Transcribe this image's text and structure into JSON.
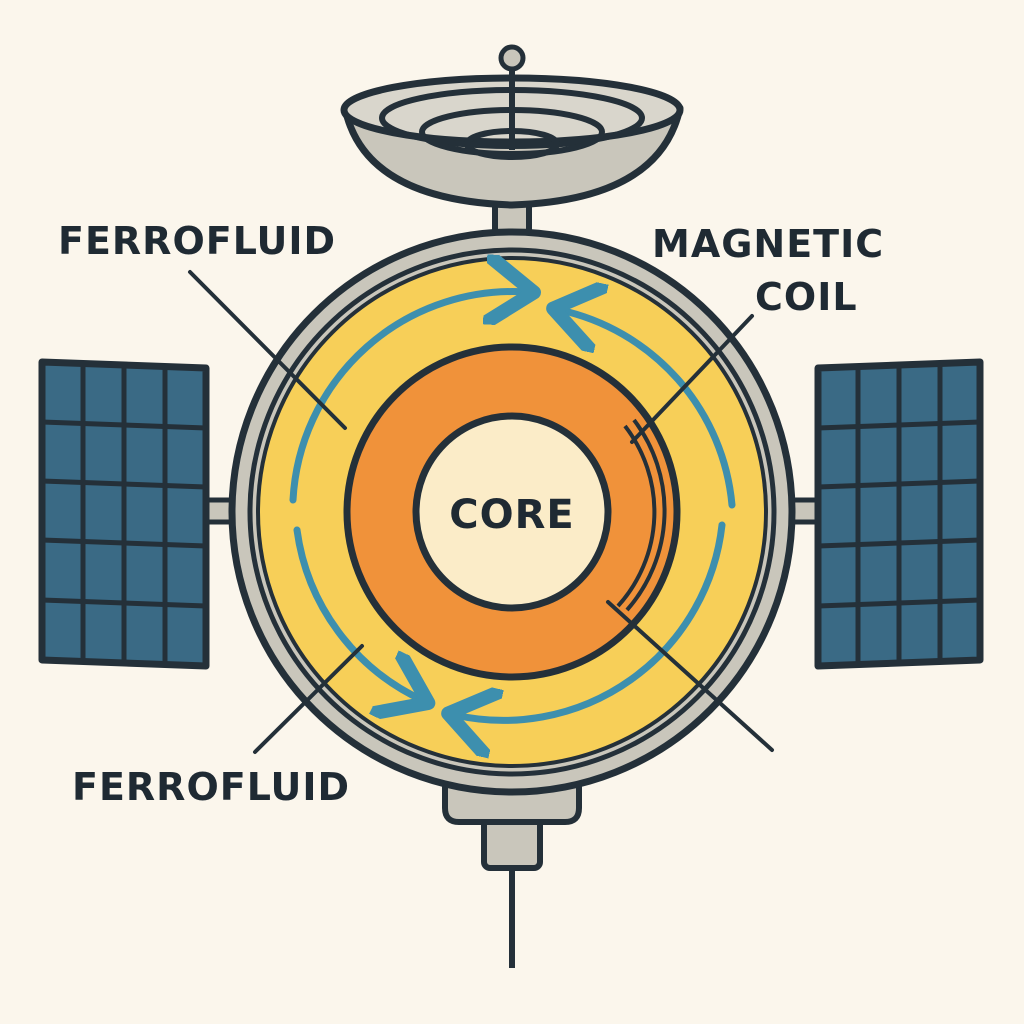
{
  "labels": {
    "ferrofluid_top": "FERROFLUID",
    "magnetic_coil_line1": "MAGNETIC",
    "magnetic_coil_line2": "COIL",
    "core": "CORE",
    "ferrofluid_bottom": "FERROFLUID"
  },
  "colors": {
    "background": "#fbf6ec",
    "outline": "#243039",
    "hull_gray": "#c9c6bb",
    "ferrofluid_yellow": "#f7cf58",
    "coil_orange": "#f0923a",
    "core_cream": "#fbecc8",
    "flow_arrow_blue": "#3d8fae",
    "solar_panel_blue": "#3a6a85"
  },
  "icons": {
    "dish": "satellite-dish-icon",
    "solar_panel": "solar-panel-icon",
    "thruster": "thruster-icon"
  }
}
